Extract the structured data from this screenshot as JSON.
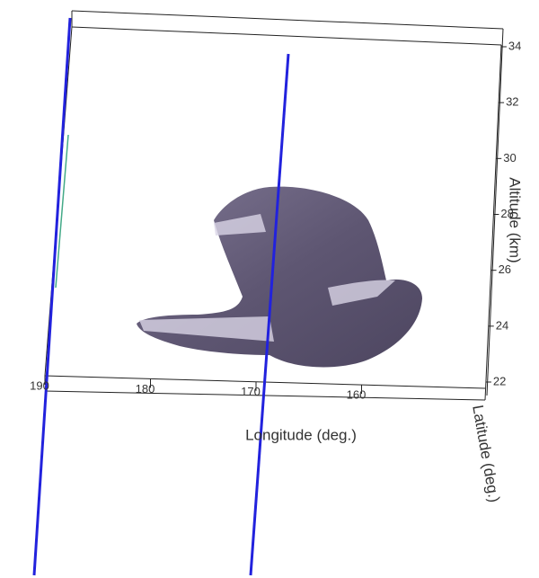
{
  "chart_data": {
    "type": "isosurface",
    "x_label": "Longitude (deg.)",
    "y_label": "Altitude (km)",
    "z_label": "Latitude (deg.)",
    "xlim": [
      190,
      150
    ],
    "xticks": [
      190,
      180,
      170,
      160
    ],
    "ylim": [
      22,
      34
    ],
    "yticks": [
      22,
      24,
      26,
      28,
      30,
      32,
      34
    ],
    "color": "#5e5672"
  }
}
